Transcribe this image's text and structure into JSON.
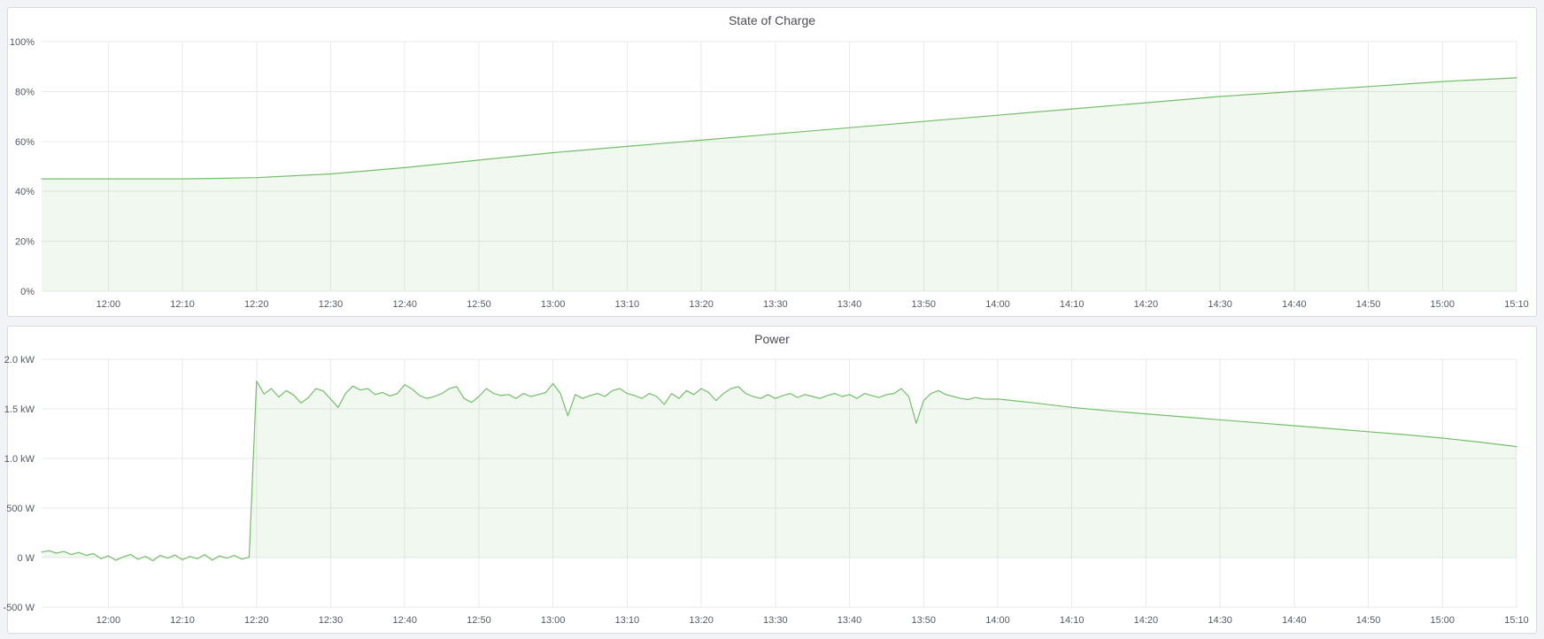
{
  "colors": {
    "series_green": "#73BF69",
    "series_fill": "rgba(115,191,105,0.1)",
    "panel_bg": "#ffffff",
    "page_bg": "#f2f3f7"
  },
  "chart_data": [
    {
      "type": "area",
      "title": "State of Charge",
      "unit": "percent",
      "legend_position": "none",
      "grid": true,
      "xlim": [
        "11:51",
        "15:10"
      ],
      "ylim": [
        0,
        100
      ],
      "x_ticks": [
        "12:00",
        "12:10",
        "12:20",
        "12:30",
        "12:40",
        "12:50",
        "13:00",
        "13:10",
        "13:20",
        "13:30",
        "13:40",
        "13:50",
        "14:00",
        "14:10",
        "14:20",
        "14:30",
        "14:40",
        "14:50",
        "15:00",
        "15:10"
      ],
      "y_ticks": [
        {
          "v": 100,
          "label": "100%"
        },
        {
          "v": 80,
          "label": "80%"
        },
        {
          "v": 60,
          "label": "60%"
        },
        {
          "v": 40,
          "label": "40%"
        },
        {
          "v": 20,
          "label": "20%"
        },
        {
          "v": 0,
          "label": "0%"
        }
      ],
      "series": [
        {
          "name": "State of Charge",
          "color": "#73BF69",
          "fill": "rgba(115,191,105,0.1)",
          "points": [
            [
              "11:51",
              45
            ],
            [
              "12:00",
              45
            ],
            [
              "12:05",
              45
            ],
            [
              "12:10",
              45
            ],
            [
              "12:15",
              45.2
            ],
            [
              "12:20",
              45.5
            ],
            [
              "12:30",
              47
            ],
            [
              "12:40",
              49.5
            ],
            [
              "12:50",
              52.5
            ],
            [
              "13:00",
              55.5
            ],
            [
              "13:10",
              58
            ],
            [
              "13:20",
              60.5
            ],
            [
              "13:30",
              63
            ],
            [
              "13:40",
              65.5
            ],
            [
              "13:50",
              68
            ],
            [
              "14:00",
              70.5
            ],
            [
              "14:10",
              73
            ],
            [
              "14:20",
              75.5
            ],
            [
              "14:30",
              78
            ],
            [
              "14:40",
              80
            ],
            [
              "14:50",
              82
            ],
            [
              "15:00",
              84
            ],
            [
              "15:10",
              85.5
            ]
          ]
        }
      ]
    },
    {
      "type": "area",
      "title": "Power",
      "unit": "watt",
      "legend_position": "none",
      "grid": true,
      "xlim": [
        "11:51",
        "15:10"
      ],
      "ylim": [
        -500,
        2000
      ],
      "x_ticks": [
        "12:00",
        "12:10",
        "12:20",
        "12:30",
        "12:40",
        "12:50",
        "13:00",
        "13:10",
        "13:20",
        "13:30",
        "13:40",
        "13:50",
        "14:00",
        "14:10",
        "14:20",
        "14:30",
        "14:40",
        "14:50",
        "15:00",
        "15:10"
      ],
      "y_ticks": [
        {
          "v": 2000,
          "label": "2.0 kW"
        },
        {
          "v": 1500,
          "label": "1.5 kW"
        },
        {
          "v": 1000,
          "label": "1.0 kW"
        },
        {
          "v": 500,
          "label": "500 W"
        },
        {
          "v": 0,
          "label": "0 W"
        },
        {
          "v": -500,
          "label": "-500 W"
        }
      ],
      "series": [
        {
          "name": "Power",
          "color": "#73BF69",
          "fill": "rgba(115,191,105,0.1)",
          "points": [
            [
              "11:51",
              55
            ],
            [
              "11:52",
              70
            ],
            [
              "11:53",
              45
            ],
            [
              "11:54",
              62
            ],
            [
              "11:55",
              30
            ],
            [
              "11:56",
              52
            ],
            [
              "11:57",
              22
            ],
            [
              "11:58",
              40
            ],
            [
              "11:59",
              -12
            ],
            [
              "12:00",
              18
            ],
            [
              "12:01",
              -28
            ],
            [
              "12:02",
              6
            ],
            [
              "12:03",
              32
            ],
            [
              "12:04",
              -18
            ],
            [
              "12:05",
              12
            ],
            [
              "12:06",
              -32
            ],
            [
              "12:07",
              22
            ],
            [
              "12:08",
              -6
            ],
            [
              "12:09",
              26
            ],
            [
              "12:10",
              -22
            ],
            [
              "12:11",
              12
            ],
            [
              "12:12",
              -12
            ],
            [
              "12:13",
              30
            ],
            [
              "12:14",
              -26
            ],
            [
              "12:15",
              16
            ],
            [
              "12:16",
              -6
            ],
            [
              "12:17",
              22
            ],
            [
              "12:18",
              -16
            ],
            [
              "12:19",
              4
            ],
            [
              "12:20",
              1780
            ],
            [
              "12:21",
              1650
            ],
            [
              "12:22",
              1705
            ],
            [
              "12:23",
              1620
            ],
            [
              "12:24",
              1685
            ],
            [
              "12:25",
              1640
            ],
            [
              "12:26",
              1560
            ],
            [
              "12:27",
              1615
            ],
            [
              "12:28",
              1705
            ],
            [
              "12:29",
              1680
            ],
            [
              "12:30",
              1600
            ],
            [
              "12:31",
              1515
            ],
            [
              "12:32",
              1655
            ],
            [
              "12:33",
              1730
            ],
            [
              "12:34",
              1690
            ],
            [
              "12:35",
              1705
            ],
            [
              "12:36",
              1645
            ],
            [
              "12:37",
              1665
            ],
            [
              "12:38",
              1630
            ],
            [
              "12:39",
              1655
            ],
            [
              "12:40",
              1745
            ],
            [
              "12:41",
              1700
            ],
            [
              "12:42",
              1635
            ],
            [
              "12:43",
              1605
            ],
            [
              "12:44",
              1625
            ],
            [
              "12:45",
              1655
            ],
            [
              "12:46",
              1705
            ],
            [
              "12:47",
              1725
            ],
            [
              "12:48",
              1605
            ],
            [
              "12:49",
              1565
            ],
            [
              "12:50",
              1625
            ],
            [
              "12:51",
              1705
            ],
            [
              "12:52",
              1655
            ],
            [
              "12:53",
              1635
            ],
            [
              "12:54",
              1645
            ],
            [
              "12:55",
              1605
            ],
            [
              "12:56",
              1655
            ],
            [
              "12:57",
              1625
            ],
            [
              "12:58",
              1645
            ],
            [
              "12:59",
              1665
            ],
            [
              "13:00",
              1755
            ],
            [
              "13:01",
              1655
            ],
            [
              "13:02",
              1430
            ],
            [
              "13:03",
              1645
            ],
            [
              "13:04",
              1605
            ],
            [
              "13:05",
              1635
            ],
            [
              "13:06",
              1655
            ],
            [
              "13:07",
              1625
            ],
            [
              "13:08",
              1685
            ],
            [
              "13:09",
              1705
            ],
            [
              "13:10",
              1655
            ],
            [
              "13:11",
              1635
            ],
            [
              "13:12",
              1605
            ],
            [
              "13:13",
              1655
            ],
            [
              "13:14",
              1625
            ],
            [
              "13:15",
              1545
            ],
            [
              "13:16",
              1655
            ],
            [
              "13:17",
              1605
            ],
            [
              "13:18",
              1685
            ],
            [
              "13:19",
              1645
            ],
            [
              "13:20",
              1705
            ],
            [
              "13:21",
              1665
            ],
            [
              "13:22",
              1585
            ],
            [
              "13:23",
              1655
            ],
            [
              "13:24",
              1705
            ],
            [
              "13:25",
              1725
            ],
            [
              "13:26",
              1655
            ],
            [
              "13:27",
              1625
            ],
            [
              "13:28",
              1605
            ],
            [
              "13:29",
              1645
            ],
            [
              "13:30",
              1605
            ],
            [
              "13:31",
              1635
            ],
            [
              "13:32",
              1655
            ],
            [
              "13:33",
              1615
            ],
            [
              "13:34",
              1645
            ],
            [
              "13:35",
              1625
            ],
            [
              "13:36",
              1605
            ],
            [
              "13:37",
              1635
            ],
            [
              "13:38",
              1655
            ],
            [
              "13:39",
              1625
            ],
            [
              "13:40",
              1645
            ],
            [
              "13:41",
              1605
            ],
            [
              "13:42",
              1655
            ],
            [
              "13:43",
              1635
            ],
            [
              "13:44",
              1615
            ],
            [
              "13:45",
              1645
            ],
            [
              "13:46",
              1655
            ],
            [
              "13:47",
              1705
            ],
            [
              "13:48",
              1625
            ],
            [
              "13:49",
              1355
            ],
            [
              "13:50",
              1585
            ],
            [
              "13:51",
              1655
            ],
            [
              "13:52",
              1685
            ],
            [
              "13:53",
              1645
            ],
            [
              "13:54",
              1625
            ],
            [
              "13:55",
              1605
            ],
            [
              "13:56",
              1595
            ],
            [
              "13:57",
              1615
            ],
            [
              "13:58",
              1600
            ],
            [
              "13:59",
              1598
            ],
            [
              "14:00",
              1600
            ],
            [
              "14:05",
              1560
            ],
            [
              "14:10",
              1515
            ],
            [
              "14:15",
              1480
            ],
            [
              "14:20",
              1450
            ],
            [
              "14:25",
              1420
            ],
            [
              "14:30",
              1390
            ],
            [
              "14:35",
              1360
            ],
            [
              "14:40",
              1330
            ],
            [
              "14:45",
              1300
            ],
            [
              "14:50",
              1270
            ],
            [
              "14:55",
              1240
            ],
            [
              "15:00",
              1205
            ],
            [
              "15:05",
              1165
            ],
            [
              "15:10",
              1120
            ]
          ]
        }
      ]
    }
  ]
}
